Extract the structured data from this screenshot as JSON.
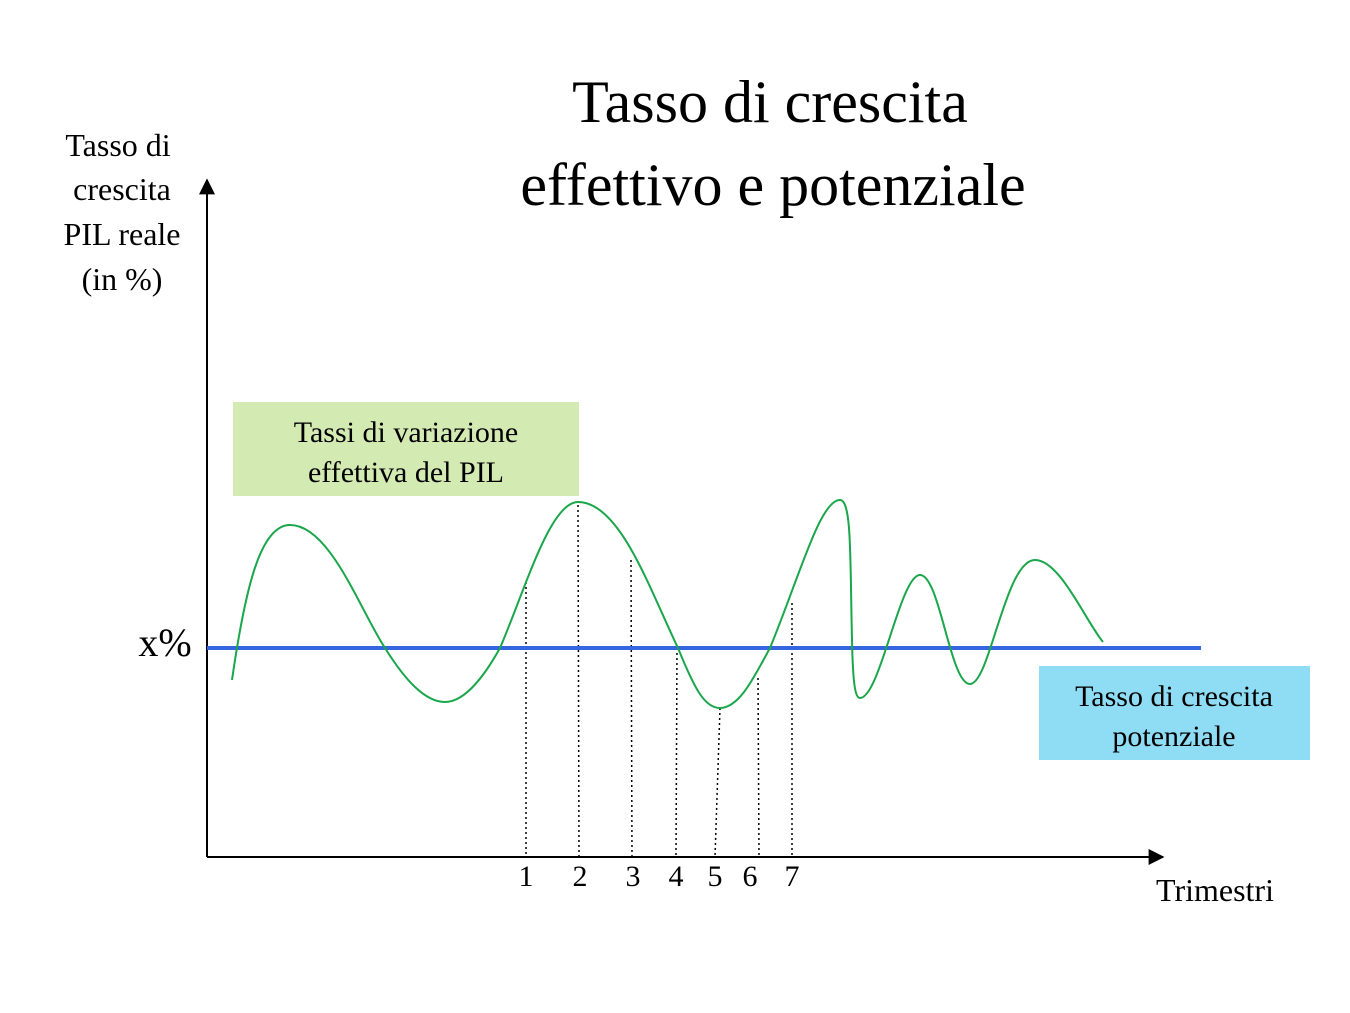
{
  "title": [
    "Tasso di crescita",
    "effettivo e potenziale"
  ],
  "y_axis_label": [
    "Tasso di",
    "crescita",
    "PIL reale",
    "(in %)"
  ],
  "x_axis_label": "Trimestri",
  "reference_label": "x%",
  "quarters": [
    "1",
    "2",
    "3",
    "4",
    "5",
    "6",
    "7"
  ],
  "boxes": {
    "actual": [
      "Tassi di variazione",
      "effettiva del PIL"
    ],
    "potential": [
      "Tasso di crescita",
      "potenziale"
    ]
  }
}
